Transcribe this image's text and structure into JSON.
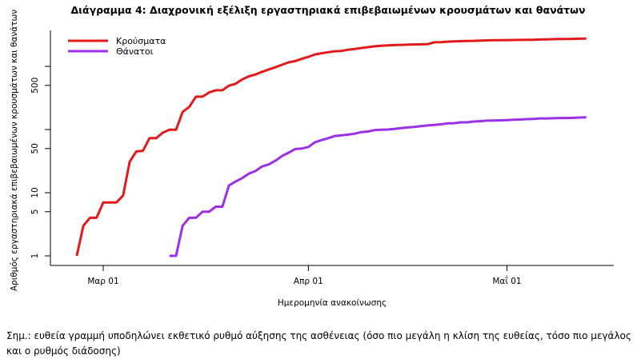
{
  "chart_data": {
    "type": "line",
    "title": "Διάγραμμα 4: Διαχρονική εξέλιξη εργαστηριακά επιβεβαιωμένων κρουσμάτων και θανάτων",
    "xlabel": "Ημερομηνία ανακοίνωσης",
    "ylabel": "Αριθμός εργαστηριακά επιβεβαιωμένων κρουσμάτων και θανάτων",
    "yscale": "log",
    "ylim": [
      1,
      3000
    ],
    "yticks": [
      1,
      5,
      10,
      50,
      100,
      500,
      1000
    ],
    "ytick_labels": [
      "1",
      "5",
      "10",
      "50",
      "",
      "500",
      ""
    ],
    "xticks": [
      {
        "date": "2020-03-01",
        "label": "Μαρ 01"
      },
      {
        "date": "2020-04-01",
        "label": "Απρ 01"
      },
      {
        "date": "2020-05-01",
        "label": "Μαΐ 01"
      }
    ],
    "legend_position": "top-left",
    "series": [
      {
        "name": "Κρούσματα",
        "color": "#e31a1c",
        "start_date": "2020-02-26",
        "values": [
          1,
          3,
          4,
          4,
          7,
          7,
          7,
          9,
          31,
          45,
          46,
          73,
          73,
          89,
          99,
          99,
          190,
          228,
          331,
          331,
          387,
          418,
          418,
          495,
          530,
          624,
          695,
          743,
          821,
          892,
          966,
          1061,
          1156,
          1212,
          1314,
          1415,
          1544,
          1613,
          1673,
          1735,
          1755,
          1832,
          1884,
          1955,
          2011,
          2081,
          2114,
          2145,
          2170,
          2192,
          2207,
          2224,
          2235,
          2245,
          2401,
          2408,
          2463,
          2490,
          2506,
          2517,
          2534,
          2566,
          2576,
          2591,
          2591,
          2612,
          2620,
          2626,
          2632,
          2642,
          2663,
          2678,
          2691,
          2710,
          2716,
          2726,
          2744,
          2760
        ]
      },
      {
        "name": "Θάνατοι",
        "color": "#9b30e8",
        "start_date": "2020-03-11",
        "values": [
          1,
          1,
          3,
          4,
          4,
          5,
          5,
          6,
          6,
          13,
          15,
          17,
          20,
          22,
          26,
          28,
          32,
          38,
          43,
          49,
          50,
          53,
          63,
          68,
          73,
          79,
          81,
          83,
          86,
          91,
          93,
          98,
          99,
          100,
          102,
          105,
          108,
          110,
          113,
          116,
          118,
          121,
          125,
          126,
          130,
          130,
          134,
          136,
          138,
          139,
          140,
          141,
          143,
          144,
          146,
          147,
          150,
          150,
          151,
          152,
          152,
          153,
          155,
          156
        ]
      }
    ]
  },
  "footnote": "Σημ.: ευθεία γραμμή υποδηλώνει εκθετικό ρυθμό αύξησης της ασθένειας (όσο πιο μεγάλη η κλίση της ευθείας, τόσο πιο μεγάλος και ο ρυθμός διάδοσης)"
}
